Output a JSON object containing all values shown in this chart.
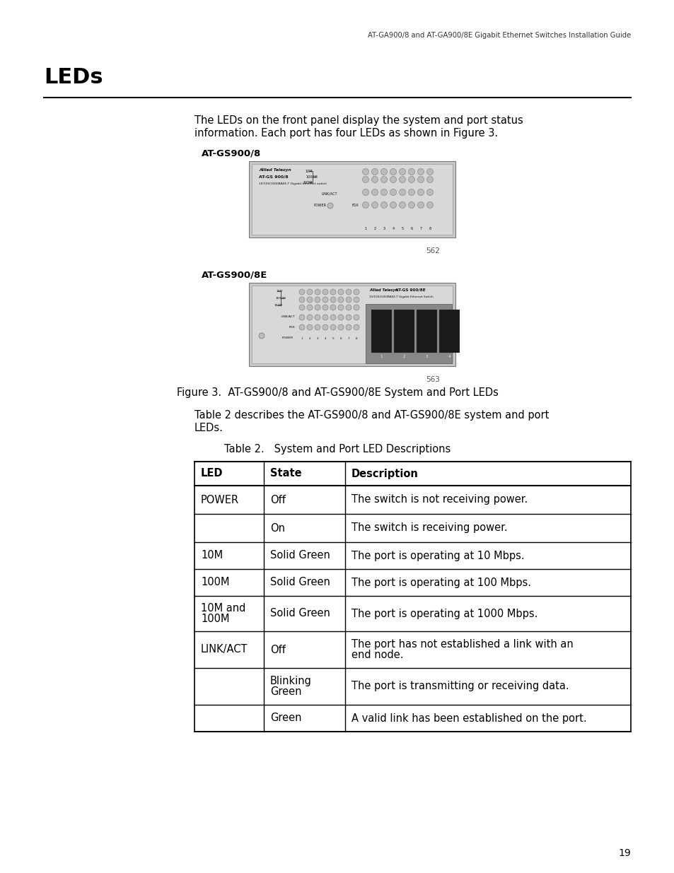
{
  "page_header": "AT-GA900/8 and AT-GA900/8E Gigabit Ethernet Switches Installation Guide",
  "section_title": "LEDs",
  "intro_text_line1": "The LEDs on the front panel display the system and port status",
  "intro_text_line2": "information. Each port has four LEDs as shown in Figure 3.",
  "label_gs900_8": "AT-GS900/8",
  "label_gs900_8e": "AT-GS900/8E",
  "fig_num_1": "562",
  "fig_num_2": "563",
  "fig_caption": "Figure 3.  AT-GS900/8 and AT-GS900/8E System and Port LEDs",
  "table_intro_line1": "Table 2 describes the AT-GS900/8 and AT-GS900/8E system and port",
  "table_intro_line2": "LEDs.",
  "table_title": "Table 2.   System and Port LED Descriptions",
  "table_headers": [
    "LED",
    "State",
    "Description"
  ],
  "table_rows": [
    [
      "POWER",
      "Off",
      "The switch is not receiving power."
    ],
    [
      "",
      "On",
      "The switch is receiving power."
    ],
    [
      "10M",
      "Solid Green",
      "The port is operating at 10 Mbps."
    ],
    [
      "100M",
      "Solid Green",
      "The port is operating at 100 Mbps."
    ],
    [
      "10M and\n100M",
      "Solid Green",
      "The port is operating at 1000 Mbps."
    ],
    [
      "LINK/ACT",
      "Off",
      "The port has not established a link with an\nend node."
    ],
    [
      "",
      "Blinking\nGreen",
      "The port is transmitting or receiving data."
    ],
    [
      "",
      "Green",
      "A valid link has been established on the port."
    ]
  ],
  "page_number": "19",
  "bg_color": "#ffffff",
  "text_color": "#000000",
  "table_border_color": "#000000"
}
